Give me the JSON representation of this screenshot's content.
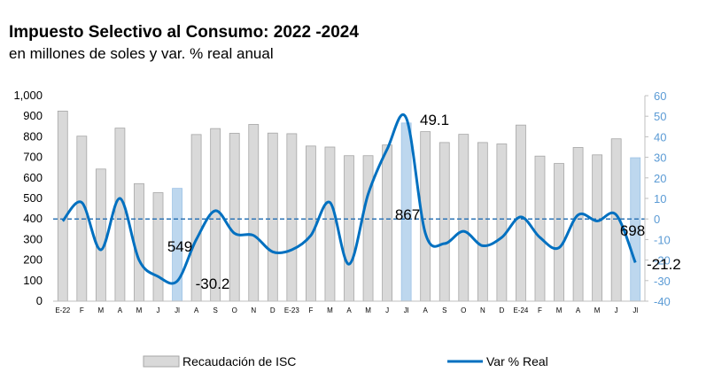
{
  "title": "Impuesto Selectivo al Consumo: 2022 -2024",
  "subtitle": "en millones de soles y var. % real anual",
  "chart_data": {
    "type": "bar",
    "categories": [
      "E-22",
      "F",
      "M",
      "A",
      "M",
      "J",
      "Jl",
      "A",
      "S",
      "O",
      "N",
      "D",
      "E-23",
      "F",
      "M",
      "A",
      "M",
      "J",
      "Jl",
      "A",
      "S",
      "O",
      "N",
      "D",
      "E-24",
      "F",
      "M",
      "A",
      "M",
      "J",
      "Jl"
    ],
    "series": [
      {
        "name": "Recaudación de ISC",
        "type": "bar",
        "axis": "left",
        "values": [
          925,
          803,
          643,
          842,
          572,
          528,
          549,
          811,
          840,
          817,
          860,
          818,
          815,
          755,
          750,
          708,
          708,
          760,
          867,
          825,
          772,
          812,
          772,
          765,
          857,
          706,
          670,
          748,
          712,
          790,
          698
        ],
        "color": "#d9d9d9",
        "highlight_color": "#bdd7ee",
        "highlight_indices": [
          6,
          18,
          30
        ]
      },
      {
        "name": "Var % Real",
        "type": "line",
        "axis": "right",
        "values": [
          -1,
          8,
          -15,
          10,
          -20,
          -28,
          -30.2,
          -10,
          4,
          -7,
          -8,
          -16,
          -15,
          -8,
          8,
          -22,
          12,
          34,
          49.1,
          -7,
          -12,
          -6,
          -13,
          -9,
          1,
          -9,
          -14,
          2,
          -1,
          2,
          -21.2
        ],
        "color": "#0070c0"
      }
    ],
    "data_labels": [
      {
        "series": "bar",
        "index": 6,
        "text": "549"
      },
      {
        "series": "bar",
        "index": 18,
        "text": "867"
      },
      {
        "series": "bar",
        "index": 30,
        "text": "698"
      },
      {
        "series": "line",
        "index": 6,
        "text": "-30.2"
      },
      {
        "series": "line",
        "index": 18,
        "text": "49.1"
      },
      {
        "series": "line",
        "index": 30,
        "text": "-21.2"
      }
    ],
    "y_left": {
      "min": 0,
      "max": 1000,
      "step": 100,
      "ticks": [
        "0",
        "100",
        "200",
        "300",
        "400",
        "500",
        "600",
        "700",
        "800",
        "900",
        "1,000"
      ]
    },
    "y_right": {
      "min": -40,
      "max": 60,
      "step": 10,
      "ticks": [
        "-40",
        "-30",
        "-20",
        "-10",
        "0",
        "10",
        "20",
        "30",
        "40",
        "50",
        "60"
      ],
      "color": "#5b9bd5"
    },
    "reference_line": {
      "axis": "right",
      "value": 0,
      "style": "dashed",
      "color": "#2e75b6"
    },
    "grid": false,
    "legend": {
      "position": "bottom",
      "entries": [
        "Recaudación de ISC",
        "Var % Real"
      ]
    }
  }
}
